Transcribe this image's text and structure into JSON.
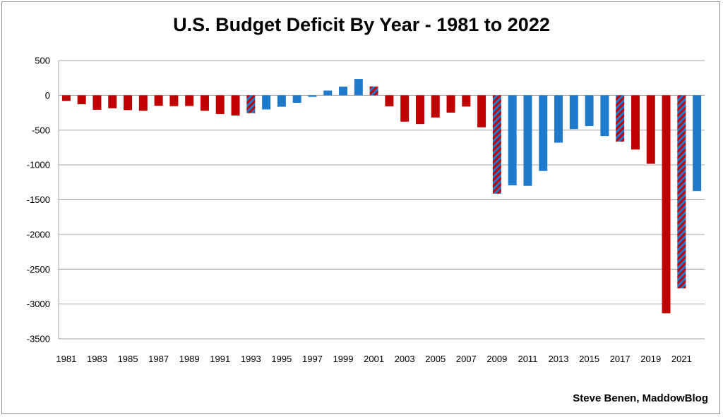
{
  "chart_data": {
    "type": "bar",
    "title": "U.S. Budget Deficit By Year - 1981 to 2022",
    "xlabel": "",
    "ylabel": "",
    "ylim": [
      -3500,
      500
    ],
    "y_ticks": [
      500,
      0,
      -500,
      -1000,
      -1500,
      -2000,
      -2500,
      -3000,
      -3500
    ],
    "grid": true,
    "legend": "none",
    "categories": [
      "1981",
      "1982",
      "1983",
      "1984",
      "1985",
      "1986",
      "1987",
      "1988",
      "1989",
      "1990",
      "1991",
      "1992",
      "1993",
      "1994",
      "1995",
      "1996",
      "1997",
      "1998",
      "1999",
      "2000",
      "2001",
      "2002",
      "2003",
      "2004",
      "2005",
      "2006",
      "2007",
      "2008",
      "2009",
      "2010",
      "2011",
      "2012",
      "2013",
      "2014",
      "2015",
      "2016",
      "2017",
      "2018",
      "2019",
      "2020",
      "2021",
      "2022"
    ],
    "x_tick_labels": [
      "1981",
      "1983",
      "1985",
      "1987",
      "1989",
      "1991",
      "1993",
      "1995",
      "1997",
      "1999",
      "2001",
      "2003",
      "2005",
      "2007",
      "2009",
      "2011",
      "2013",
      "2015",
      "2017",
      "2019",
      "2021"
    ],
    "values": [
      -79,
      -128,
      -208,
      -185,
      -212,
      -221,
      -150,
      -155,
      -153,
      -221,
      -269,
      -290,
      -255,
      -203,
      -164,
      -107,
      -22,
      69,
      126,
      236,
      128,
      -158,
      -378,
      -413,
      -318,
      -248,
      -161,
      -459,
      -1413,
      -1294,
      -1300,
      -1087,
      -680,
      -485,
      -442,
      -585,
      -665,
      -779,
      -984,
      -3132,
      -2775,
      -1375
    ],
    "bar_party": [
      "R",
      "R",
      "R",
      "R",
      "R",
      "R",
      "R",
      "R",
      "R",
      "R",
      "R",
      "R",
      "RD",
      "D",
      "D",
      "D",
      "D",
      "D",
      "D",
      "D",
      "DR",
      "R",
      "R",
      "R",
      "R",
      "R",
      "R",
      "R",
      "RD",
      "D",
      "D",
      "D",
      "D",
      "D",
      "D",
      "D",
      "DR",
      "R",
      "R",
      "R",
      "RD",
      "D"
    ],
    "colors": {
      "R": "#c00000",
      "D": "#1f7acc",
      "grid": "#a6a6a6",
      "axis": "#a6a6a6"
    }
  },
  "credit": "Steve Benen, MaddowBlog"
}
